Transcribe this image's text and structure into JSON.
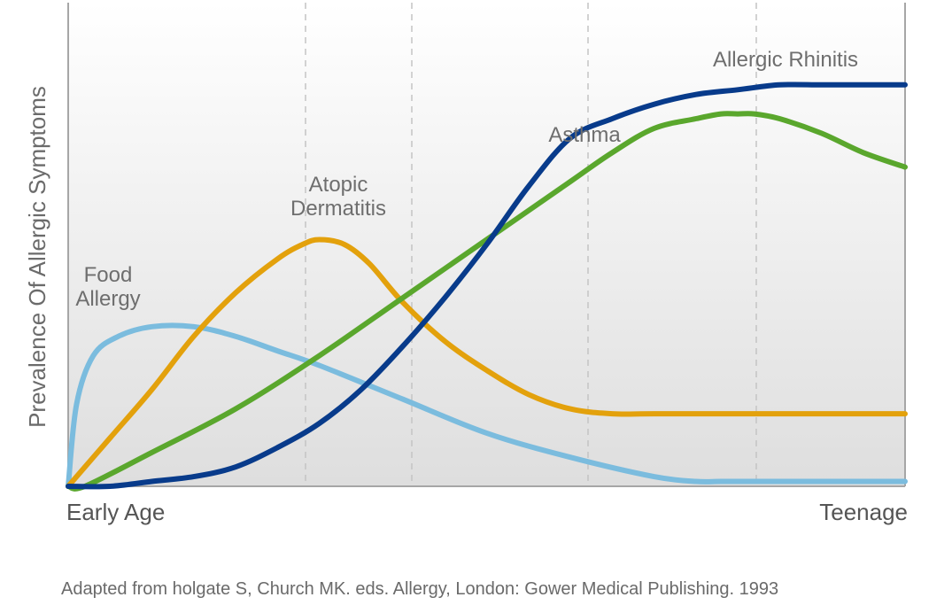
{
  "chart_data": {
    "type": "line",
    "title": "",
    "ylabel": "Prevalence Of Allergic Symptoms",
    "xlabel": "",
    "x_tick_labels": [
      "Early Age",
      "Teenage"
    ],
    "xlim": [
      0,
      100
    ],
    "ylim": [
      0,
      100
    ],
    "grid": "vertical dashed",
    "legend": "none (series labelled directly on the plot)",
    "series": [
      {
        "name": "Food Allergy",
        "label_lines": [
          "Food",
          "Allergy"
        ],
        "color": "#7bbcde",
        "x": [
          0,
          1,
          3,
          6,
          10,
          15,
          20,
          25,
          30,
          40,
          50,
          60,
          70,
          75,
          78,
          82,
          90,
          100
        ],
        "y": [
          0,
          17,
          27,
          31,
          33,
          33,
          31,
          28,
          25,
          18,
          11,
          6,
          2,
          1,
          1,
          1,
          1,
          1
        ]
      },
      {
        "name": "Atopic Dermatitis",
        "label_lines": [
          "Atopic",
          "Dermatitis"
        ],
        "color": "#e3a10c",
        "x": [
          0,
          5,
          10,
          15,
          20,
          25,
          28,
          30,
          33,
          36,
          40,
          45,
          50,
          55,
          60,
          65,
          70,
          80,
          90,
          100
        ],
        "y": [
          0,
          10,
          20,
          31,
          40,
          47,
          50,
          51,
          50,
          46,
          38,
          30,
          24,
          19,
          16,
          15,
          15,
          15,
          15,
          15
        ]
      },
      {
        "name": "Asthma",
        "label_lines": [
          "Asthma"
        ],
        "color": "#5aa72d",
        "x": [
          0,
          2,
          10,
          20,
          30,
          40,
          50,
          60,
          65,
          70,
          75,
          78,
          80,
          82,
          85,
          90,
          95,
          100
        ],
        "y": [
          0,
          0,
          7,
          16,
          27,
          39,
          51,
          63,
          69,
          74,
          76,
          77,
          77,
          77,
          76,
          73,
          69,
          66
        ]
      },
      {
        "name": "Allergic Rhinitis",
        "label_lines": [
          "Allergic Rhinitis"
        ],
        "color": "#083b8b",
        "x": [
          0,
          5,
          10,
          15,
          20,
          25,
          30,
          35,
          40,
          45,
          50,
          55,
          60,
          65,
          70,
          75,
          80,
          85,
          90,
          95,
          100
        ],
        "y": [
          0,
          0,
          1,
          2,
          4,
          8,
          13,
          20,
          29,
          39,
          50,
          62,
          72,
          76,
          79,
          81,
          82,
          83,
          83,
          83,
          83
        ]
      }
    ],
    "source_note": "Adapted from holgate S, Church MK. eds. Allergy, London: Gower Medical Publishing. 1993"
  }
}
